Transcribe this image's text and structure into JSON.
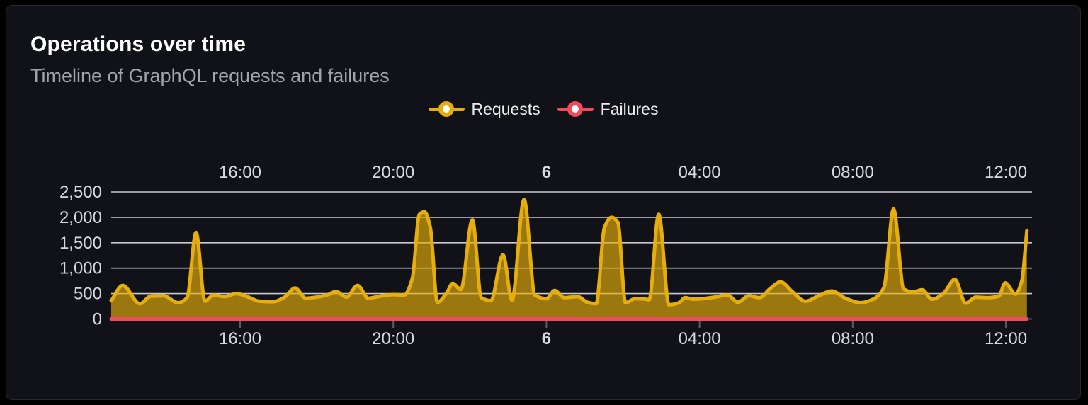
{
  "panel": {
    "title": "Operations over time",
    "subtitle": "Timeline of GraphQL requests and failures"
  },
  "legend": {
    "items": [
      {
        "id": "requests",
        "label": "Requests",
        "color": "#e6ae0d"
      },
      {
        "id": "failures",
        "label": "Failures",
        "color": "#f2495c"
      }
    ]
  },
  "colors": {
    "outer_background": "#000000",
    "panel_background": "#111218",
    "panel_border": "#26282f",
    "title_text": "#ffffff",
    "subtitle_text": "#a1a3ab",
    "axis_text": "#d8d9de",
    "grid": "#c9cad2",
    "baseline": "#53555c",
    "tick_mark": "#5a5c64",
    "requests": "#e6ae0d",
    "failures": "#f2495c"
  },
  "chart_data": {
    "type": "area",
    "title": "Operations over time",
    "grid": true,
    "legend_position": "top-center",
    "x_axis": {
      "unit": "time",
      "domain_minutes": [
        0,
        1443
      ],
      "labels_position": "top_and_bottom",
      "ticks": [
        {
          "minute": 202,
          "label": "16:00",
          "bold": false
        },
        {
          "minute": 442,
          "label": "20:00",
          "bold": false
        },
        {
          "minute": 682,
          "label": "6",
          "bold": true
        },
        {
          "minute": 922,
          "label": "04:00",
          "bold": false
        },
        {
          "minute": 1162,
          "label": "08:00",
          "bold": false
        },
        {
          "minute": 1402,
          "label": "12:00",
          "bold": false
        }
      ]
    },
    "y_axis": {
      "ylim": [
        0,
        2500
      ],
      "ticks": [
        {
          "value": 0,
          "label": "0"
        },
        {
          "value": 500,
          "label": "500"
        },
        {
          "value": 1000,
          "label": "1,000"
        },
        {
          "value": 1500,
          "label": "1,500"
        },
        {
          "value": 2000,
          "label": "2,000"
        },
        {
          "value": 2500,
          "label": "2,500"
        }
      ]
    },
    "series": [
      {
        "name": "Requests",
        "color": "#e6ae0d",
        "fill_opacity": 0.65,
        "line_width": 5,
        "points": [
          [
            0,
            360
          ],
          [
            18,
            660
          ],
          [
            45,
            300
          ],
          [
            62,
            450
          ],
          [
            82,
            455
          ],
          [
            105,
            320
          ],
          [
            119,
            420
          ],
          [
            133,
            1700
          ],
          [
            147,
            350
          ],
          [
            160,
            470
          ],
          [
            178,
            440
          ],
          [
            196,
            500
          ],
          [
            215,
            430
          ],
          [
            232,
            350
          ],
          [
            253,
            340
          ],
          [
            272,
            430
          ],
          [
            288,
            610
          ],
          [
            305,
            410
          ],
          [
            327,
            440
          ],
          [
            340,
            480
          ],
          [
            352,
            540
          ],
          [
            369,
            430
          ],
          [
            386,
            660
          ],
          [
            403,
            410
          ],
          [
            422,
            450
          ],
          [
            442,
            480
          ],
          [
            459,
            470
          ],
          [
            472,
            800
          ],
          [
            483,
            2060
          ],
          [
            491,
            2110
          ],
          [
            500,
            1800
          ],
          [
            511,
            330
          ],
          [
            526,
            520
          ],
          [
            535,
            700
          ],
          [
            548,
            580
          ],
          [
            566,
            1950
          ],
          [
            580,
            420
          ],
          [
            595,
            360
          ],
          [
            614,
            1260
          ],
          [
            628,
            370
          ],
          [
            647,
            2350
          ],
          [
            664,
            470
          ],
          [
            682,
            400
          ],
          [
            695,
            560
          ],
          [
            710,
            420
          ],
          [
            731,
            440
          ],
          [
            746,
            330
          ],
          [
            760,
            300
          ],
          [
            773,
            1800
          ],
          [
            784,
            2000
          ],
          [
            794,
            1900
          ],
          [
            806,
            320
          ],
          [
            821,
            400
          ],
          [
            834,
            395
          ],
          [
            843,
            380
          ],
          [
            858,
            2060
          ],
          [
            874,
            280
          ],
          [
            890,
            320
          ],
          [
            899,
            420
          ],
          [
            913,
            390
          ],
          [
            927,
            400
          ],
          [
            943,
            425
          ],
          [
            966,
            470
          ],
          [
            982,
            330
          ],
          [
            999,
            455
          ],
          [
            1016,
            420
          ],
          [
            1032,
            590
          ],
          [
            1049,
            730
          ],
          [
            1067,
            540
          ],
          [
            1088,
            350
          ],
          [
            1109,
            460
          ],
          [
            1129,
            550
          ],
          [
            1152,
            400
          ],
          [
            1174,
            320
          ],
          [
            1194,
            390
          ],
          [
            1211,
            620
          ],
          [
            1226,
            2160
          ],
          [
            1242,
            590
          ],
          [
            1256,
            530
          ],
          [
            1271,
            575
          ],
          [
            1286,
            390
          ],
          [
            1304,
            500
          ],
          [
            1322,
            780
          ],
          [
            1339,
            310
          ],
          [
            1355,
            430
          ],
          [
            1375,
            420
          ],
          [
            1391,
            450
          ],
          [
            1401,
            710
          ],
          [
            1417,
            490
          ],
          [
            1427,
            750
          ],
          [
            1435,
            1740
          ]
        ]
      },
      {
        "name": "Failures",
        "color": "#f2495c",
        "fill_opacity": 0,
        "line_width": 5,
        "points": [
          [
            0,
            0
          ],
          [
            1435,
            0
          ]
        ]
      }
    ]
  }
}
